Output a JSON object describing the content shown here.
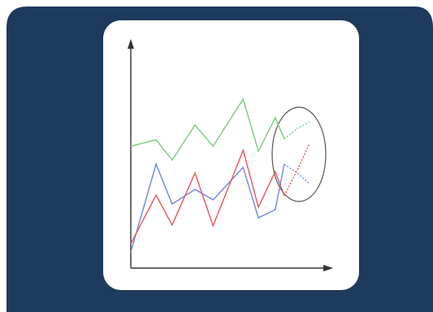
{
  "chart_data": {
    "type": "line",
    "x": [
      0,
      12.6,
      20.6,
      32,
      41,
      56,
      63.6,
      72,
      76.5,
      83,
      89
    ],
    "xlim": [
      0,
      100
    ],
    "ylim": [
      0,
      100
    ],
    "forecast_start": 8,
    "series": [
      {
        "color": "#7dc97a",
        "values": [
          53.6,
          56.4,
          47.5,
          62.9,
          53.6,
          74.3,
          51.4,
          66.1,
          56.8,
          61.4,
          64.3
        ]
      },
      {
        "color": "#6b86e8",
        "values": [
          7.1,
          45.7,
          28.2,
          34.6,
          30,
          44.3,
          22.1,
          25.7,
          45.7,
          41.8,
          37.1
        ]
      },
      {
        "color": "#e8545a",
        "values": [
          10.7,
          32.1,
          18.9,
          41.8,
          18.6,
          51.8,
          26.8,
          42.5,
          31.8,
          43.2,
          54.6
        ]
      }
    ]
  }
}
